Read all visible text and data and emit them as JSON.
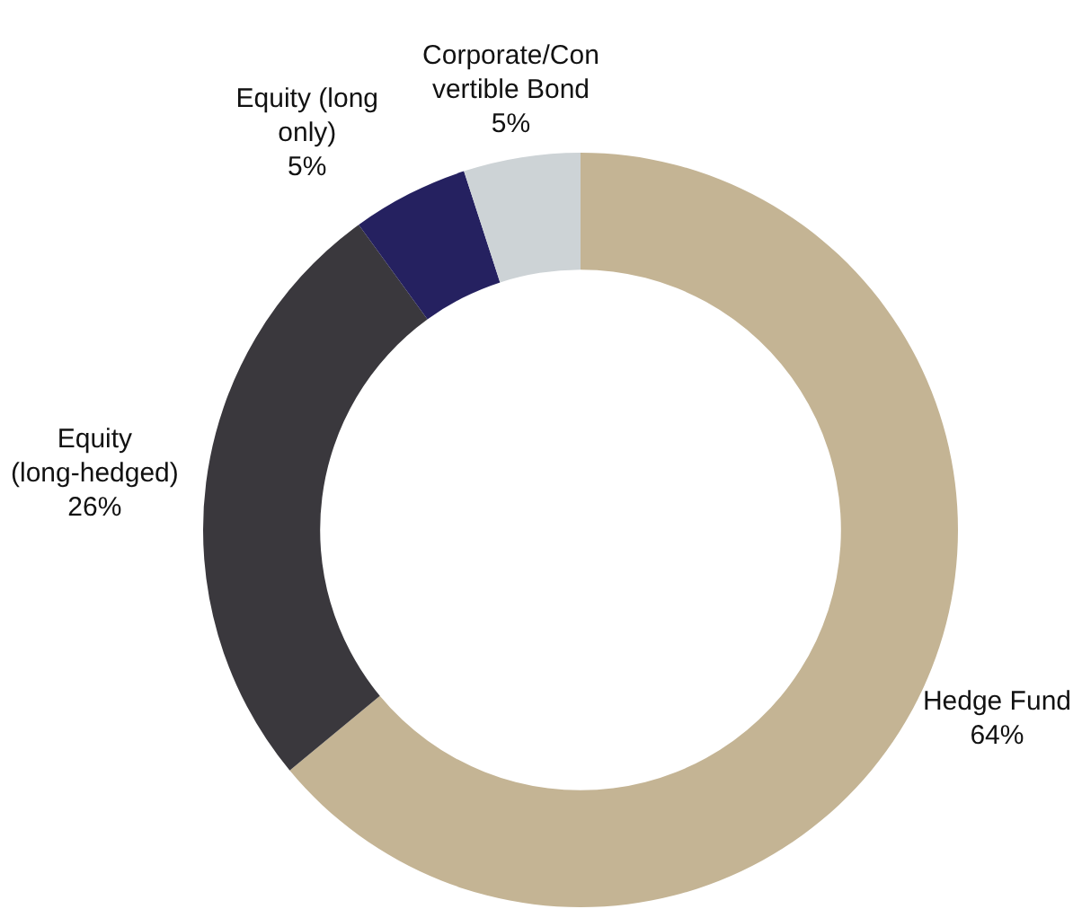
{
  "chart_data": {
    "type": "donut",
    "categories": [
      "Hedge Fund",
      "Equity (long-hedged)",
      "Equity (long only)",
      "Corporate/Convertible Bond"
    ],
    "values": [
      64,
      26,
      5,
      5
    ],
    "colors": [
      "#c4b494",
      "#3a383d",
      "#252160",
      "#cdd3d6"
    ],
    "value_labels": [
      "64%",
      "26%",
      "5%",
      "5%"
    ],
    "legend": false
  }
}
